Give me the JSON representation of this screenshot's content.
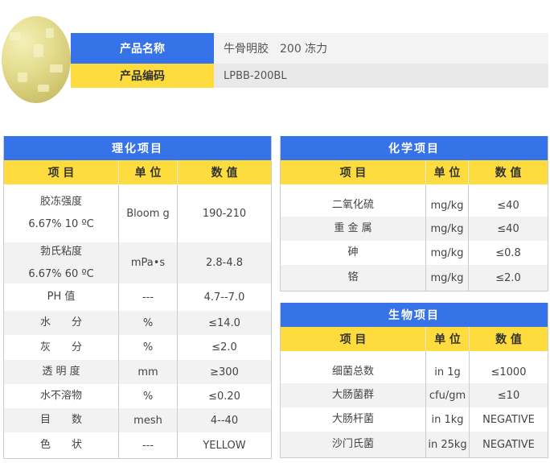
{
  "product": {
    "name_label": "产品名称",
    "name_value": "牛骨明胶　200 冻力",
    "code_label": "产品编码",
    "code_value": "LPBB-200BL"
  },
  "colors": {
    "blue": "#3672e8",
    "yellow": "#fedc3e"
  },
  "physchem": {
    "title": "理化项目",
    "headers": [
      "项 目",
      "单 位",
      "数 值"
    ],
    "rows": [
      {
        "item": "胶冻强度",
        "sub": "6.67% 10 ºC",
        "unit": "Bloom g",
        "value": "190-210"
      },
      {
        "item": "勃氏粘度",
        "sub": "6.67% 60 ºC",
        "unit": "mPa•s",
        "value": "2.8-4.8"
      },
      {
        "item": "PH 值",
        "unit": "---",
        "value": "4.7--7.0"
      },
      {
        "item": "水　　分",
        "unit": "%",
        "value": "≤14.0"
      },
      {
        "item": "灰　　分",
        "unit": "%",
        "value": "≤2.0"
      },
      {
        "item": "透 明 度",
        "unit": "mm",
        "value": "≥300"
      },
      {
        "item": "水不溶物",
        "unit": "%",
        "value": "≤0.20"
      },
      {
        "item": "目　　数",
        "unit": "mesh",
        "value": "4--40"
      },
      {
        "item": "色　　状",
        "unit": "---",
        "value": "YELLOW"
      }
    ]
  },
  "chemical": {
    "title": "化学项目",
    "headers": [
      "项 目",
      "单 位",
      "数 值"
    ],
    "rows": [
      {
        "item": "二氧化硫",
        "unit": "mg/kg",
        "value": "≤40"
      },
      {
        "item": "重 金 属",
        "unit": "mg/kg",
        "value": "≤40"
      },
      {
        "item": "砷",
        "unit": "mg/kg",
        "value": "≤0.8"
      },
      {
        "item": "铬",
        "unit": "mg/kg",
        "value": "≤2.0"
      }
    ]
  },
  "bio": {
    "title": "生物项目",
    "headers": [
      "项 目",
      "单 位",
      "数 值"
    ],
    "rows": [
      {
        "item": "细菌总数",
        "unit": "in 1g",
        "value": "≤1000"
      },
      {
        "item": "大肠菌群",
        "unit": "cfu/gm",
        "value": "≤10"
      },
      {
        "item": "大肠杆菌",
        "unit": "in 1kg",
        "value": "NEGATIVE"
      },
      {
        "item": "沙门氏菌",
        "unit": "in 25kg",
        "value": "NEGATIVE"
      }
    ]
  }
}
